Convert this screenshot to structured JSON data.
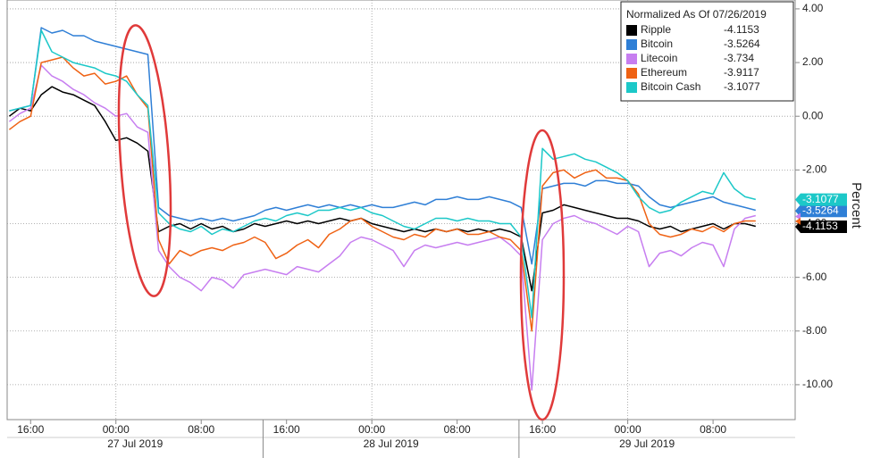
{
  "chart_data": {
    "type": "line",
    "legend_title": "Normalized As Of 07/26/2019",
    "y_label": "Percent",
    "xlim": [
      13.8,
      87.7
    ],
    "ylim": [
      -11.3,
      4.33
    ],
    "xticks": [
      {
        "value": 16,
        "label": "16:00"
      },
      {
        "value": 24,
        "label": "00:00"
      },
      {
        "value": 32,
        "label": "08:00"
      },
      {
        "value": 40,
        "label": "16:00"
      },
      {
        "value": 48,
        "label": "00:00"
      },
      {
        "value": 56,
        "label": "08:00"
      },
      {
        "value": 64,
        "label": "16:00"
      },
      {
        "value": 72,
        "label": "00:00"
      },
      {
        "value": 80,
        "label": "08:00"
      }
    ],
    "date_labels": [
      "27 Jul 2019",
      "28 Jul 2019",
      "29 Jul 2019"
    ],
    "yticks": [
      {
        "value": 4,
        "label": "4.00"
      },
      {
        "value": 2,
        "label": "2.00"
      },
      {
        "value": 0,
        "label": "0.00"
      },
      {
        "value": -2,
        "label": "-2.00"
      },
      {
        "value": -4,
        "label": "-4.00"
      },
      {
        "value": -6,
        "label": "-6.00"
      },
      {
        "value": -8,
        "label": "-8.00"
      },
      {
        "value": -10,
        "label": "-10.00"
      }
    ],
    "grid": true,
    "legend": "top-right",
    "x": [
      14,
      15,
      16,
      17,
      18,
      19,
      20,
      21,
      22,
      23,
      24,
      25,
      26,
      27,
      28,
      29,
      30,
      31,
      32,
      33,
      34,
      35,
      36,
      37,
      38,
      39,
      40,
      41,
      42,
      43,
      44,
      45,
      46,
      47,
      48,
      49,
      50,
      51,
      52,
      53,
      54,
      55,
      56,
      57,
      58,
      59,
      60,
      61,
      62,
      63,
      64,
      65,
      66,
      67,
      68,
      69,
      70,
      71,
      72,
      73,
      74,
      75,
      76,
      77,
      78,
      79,
      80,
      81,
      82,
      83,
      84
    ],
    "series": [
      {
        "name": "Ripple",
        "color": "#000000",
        "last": -4.1153,
        "axis_tag": true,
        "values": [
          0.0,
          0.3,
          0.2,
          0.8,
          1.1,
          0.9,
          0.8,
          0.6,
          0.4,
          -0.2,
          -0.9,
          -0.8,
          -1.0,
          -1.3,
          -4.3,
          -4.1,
          -4.0,
          -4.2,
          -4.0,
          -4.2,
          -4.1,
          -4.3,
          -4.2,
          -4.0,
          -4.1,
          -4.0,
          -3.9,
          -4.0,
          -3.9,
          -4.0,
          -3.9,
          -3.8,
          -3.9,
          -3.8,
          -4.0,
          -4.1,
          -4.2,
          -4.3,
          -4.2,
          -4.3,
          -4.2,
          -4.3,
          -4.2,
          -4.3,
          -4.2,
          -4.3,
          -4.2,
          -4.3,
          -4.5,
          -6.5,
          -3.6,
          -3.5,
          -3.3,
          -3.4,
          -3.5,
          -3.6,
          -3.7,
          -3.8,
          -3.8,
          -3.9,
          -4.1,
          -4.2,
          -4.1,
          -4.3,
          -4.2,
          -4.1,
          -4.0,
          -4.2,
          -4.0,
          -4.0,
          -4.1
        ]
      },
      {
        "name": "Bitcoin",
        "color": "#2f7fd6",
        "last": -3.5264,
        "axis_tag": true,
        "values": [
          0.2,
          0.3,
          0.4,
          3.3,
          3.1,
          3.2,
          3.0,
          3.0,
          2.8,
          2.7,
          2.6,
          2.5,
          2.4,
          2.3,
          -3.4,
          -3.7,
          -3.8,
          -3.9,
          -3.8,
          -3.9,
          -3.8,
          -3.9,
          -3.8,
          -3.7,
          -3.5,
          -3.4,
          -3.5,
          -3.4,
          -3.3,
          -3.4,
          -3.3,
          -3.4,
          -3.3,
          -3.4,
          -3.3,
          -3.4,
          -3.4,
          -3.3,
          -3.2,
          -3.3,
          -3.1,
          -3.1,
          -3.0,
          -3.1,
          -3.1,
          -3.0,
          -3.1,
          -3.2,
          -3.4,
          -5.5,
          -2.7,
          -2.6,
          -2.5,
          -2.5,
          -2.6,
          -2.4,
          -2.4,
          -2.5,
          -2.5,
          -2.6,
          -3.0,
          -3.3,
          -3.4,
          -3.3,
          -3.2,
          -3.1,
          -3.0,
          -3.2,
          -3.3,
          -3.4,
          -3.5
        ]
      },
      {
        "name": "Litecoin",
        "color": "#c77ef0",
        "last": -3.734,
        "axis_tag": false,
        "values": [
          -0.2,
          0.1,
          0.3,
          1.9,
          1.5,
          1.3,
          1.0,
          0.8,
          0.5,
          0.3,
          0.0,
          0.1,
          -0.4,
          -0.6,
          -5.0,
          -5.6,
          -6.0,
          -6.2,
          -6.5,
          -6.0,
          -6.1,
          -6.4,
          -5.9,
          -5.8,
          -5.7,
          -5.8,
          -5.9,
          -5.6,
          -5.7,
          -5.8,
          -5.5,
          -5.2,
          -4.7,
          -4.5,
          -4.6,
          -4.8,
          -5.0,
          -5.6,
          -5.0,
          -4.8,
          -4.9,
          -4.8,
          -4.7,
          -4.8,
          -4.7,
          -4.6,
          -4.5,
          -4.8,
          -5.2,
          -10.2,
          -4.6,
          -4.0,
          -3.8,
          -3.7,
          -3.9,
          -4.0,
          -4.2,
          -4.4,
          -4.1,
          -4.3,
          -5.6,
          -5.1,
          -5.0,
          -5.2,
          -4.9,
          -4.7,
          -4.8,
          -5.6,
          -4.2,
          -3.8,
          -3.7
        ]
      },
      {
        "name": "Ethereum",
        "color": "#ef6214",
        "last": -3.9117,
        "axis_tag": false,
        "values": [
          -0.5,
          -0.2,
          0.0,
          2.0,
          2.1,
          2.2,
          1.8,
          1.5,
          1.6,
          1.2,
          1.3,
          1.5,
          0.8,
          0.3,
          -4.6,
          -5.5,
          -5.0,
          -5.2,
          -5.0,
          -4.9,
          -5.0,
          -4.8,
          -4.7,
          -4.5,
          -4.7,
          -5.3,
          -5.1,
          -4.8,
          -4.6,
          -4.9,
          -4.4,
          -4.2,
          -3.9,
          -3.8,
          -4.1,
          -4.3,
          -4.5,
          -4.6,
          -4.4,
          -4.5,
          -4.2,
          -4.3,
          -4.2,
          -4.4,
          -4.4,
          -4.3,
          -4.5,
          -4.6,
          -5.0,
          -8.0,
          -2.6,
          -2.1,
          -2.0,
          -2.3,
          -2.1,
          -2.0,
          -2.3,
          -2.3,
          -2.4,
          -2.9,
          -4.0,
          -4.4,
          -4.5,
          -4.4,
          -4.2,
          -4.3,
          -4.1,
          -4.3,
          -4.0,
          -3.9,
          -3.9
        ]
      },
      {
        "name": "Bitcoin Cash",
        "color": "#1cc8c8",
        "last": -3.1077,
        "axis_tag": true,
        "values": [
          0.2,
          0.3,
          0.4,
          3.2,
          2.4,
          2.2,
          2.0,
          1.9,
          1.8,
          1.6,
          1.5,
          1.3,
          0.8,
          0.4,
          -3.6,
          -4.0,
          -4.2,
          -4.3,
          -4.1,
          -4.4,
          -4.2,
          -4.3,
          -4.1,
          -3.9,
          -3.8,
          -3.9,
          -3.7,
          -3.6,
          -3.7,
          -3.5,
          -3.5,
          -3.4,
          -3.5,
          -3.4,
          -3.6,
          -3.7,
          -3.9,
          -4.1,
          -4.2,
          -4.0,
          -3.8,
          -3.8,
          -3.9,
          -3.8,
          -3.9,
          -3.9,
          -4.0,
          -4.0,
          -4.5,
          -7.5,
          -1.2,
          -1.6,
          -1.5,
          -1.4,
          -1.6,
          -1.7,
          -1.9,
          -2.1,
          -2.4,
          -3.0,
          -3.4,
          -3.6,
          -3.5,
          -3.2,
          -3.0,
          -2.8,
          -2.9,
          -2.1,
          -2.7,
          -3.0,
          -3.1
        ]
      }
    ]
  }
}
